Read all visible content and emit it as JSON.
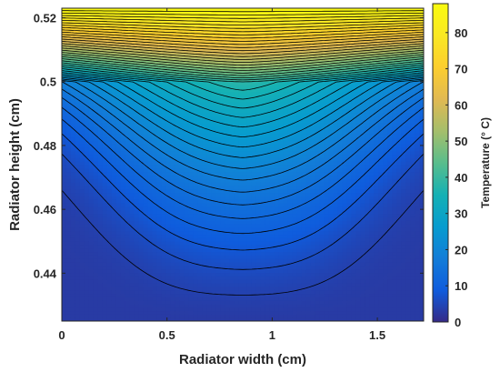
{
  "chart_data": {
    "type": "heatmap",
    "subtype": "filled-contour",
    "xlabel": "Radiator width (cm)",
    "ylabel": "Radiator height (cm)",
    "xlim": [
      0,
      1.72
    ],
    "ylim": [
      0.425,
      0.523
    ],
    "xticks": [
      0,
      0.5,
      1,
      1.5
    ],
    "xtick_labels": [
      "0",
      "0.5",
      "1",
      "1.5"
    ],
    "yticks": [
      0.44,
      0.46,
      0.48,
      0.5,
      0.52
    ],
    "ytick_labels": [
      "0.44",
      "0.46",
      "0.48",
      "0.5",
      "0.52"
    ],
    "colorbar": {
      "label": "Temperature (° C)",
      "range": [
        0,
        88
      ],
      "ticks": [
        0,
        10,
        20,
        30,
        40,
        50,
        60,
        70,
        80
      ],
      "tick_labels": [
        "0",
        "10",
        "20",
        "30",
        "40",
        "50",
        "60",
        "70",
        "80"
      ],
      "colormap": "parula"
    },
    "field_description": {
      "interface_height": 0.5,
      "top_temperature_max": 88,
      "interface_temperature_center": 38,
      "interface_temperature_edge": 18,
      "bottom_temperature": 3,
      "center_x": 0.86
    },
    "contour_levels": [
      4,
      6,
      8,
      10,
      12,
      14,
      16,
      18,
      20,
      22,
      24,
      26,
      28,
      30,
      32,
      34,
      36,
      38,
      40,
      42,
      44,
      46,
      48,
      50,
      52,
      54,
      56,
      58,
      60,
      62,
      64,
      66,
      68,
      70,
      72,
      74,
      76,
      78,
      80,
      82,
      84,
      86
    ]
  }
}
